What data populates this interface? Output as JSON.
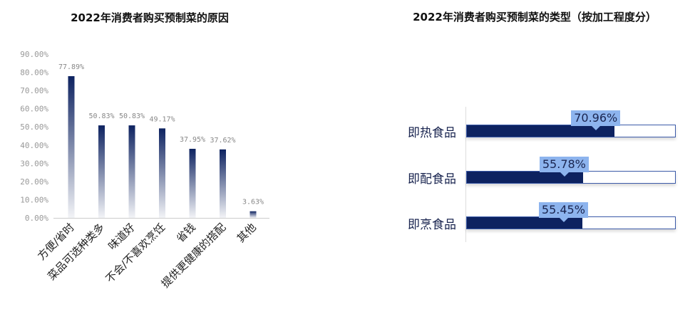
{
  "chart_data": [
    {
      "type": "bar",
      "title": "2022年消费者购买预制菜的原因",
      "categories": [
        "方便/省时",
        "菜品可选种类多",
        "味道好",
        "不会/不喜欢烹饪",
        "省钱",
        "提供更健康的搭配",
        "其他"
      ],
      "values": [
        77.89,
        50.83,
        50.83,
        49.17,
        37.95,
        37.62,
        3.63
      ],
      "data_labels": [
        "77.89%",
        "50.83%",
        "50.83%",
        "49.17%",
        "37.95%",
        "37.62%",
        "3.63%"
      ],
      "ylim": [
        0,
        90
      ],
      "yticks": [
        "0.00%",
        "10.00%",
        "20.00%",
        "30.00%",
        "40.00%",
        "50.00%",
        "60.00%",
        "70.00%",
        "80.00%",
        "90.00%"
      ],
      "grid": false,
      "color": "#0d2260"
    },
    {
      "type": "bar",
      "orientation": "horizontal",
      "title": "2022年消费者购买预制菜的类型（按加工程度分）",
      "categories": [
        "即热食品",
        "即配食品",
        "即烹食品"
      ],
      "values": [
        70.96,
        55.78,
        55.45
      ],
      "data_labels": [
        "70.96%",
        "55.78%",
        "55.45%"
      ],
      "xlim": [
        0,
        100
      ],
      "color": "#0d2260",
      "label_color": "#8db4ee"
    }
  ]
}
